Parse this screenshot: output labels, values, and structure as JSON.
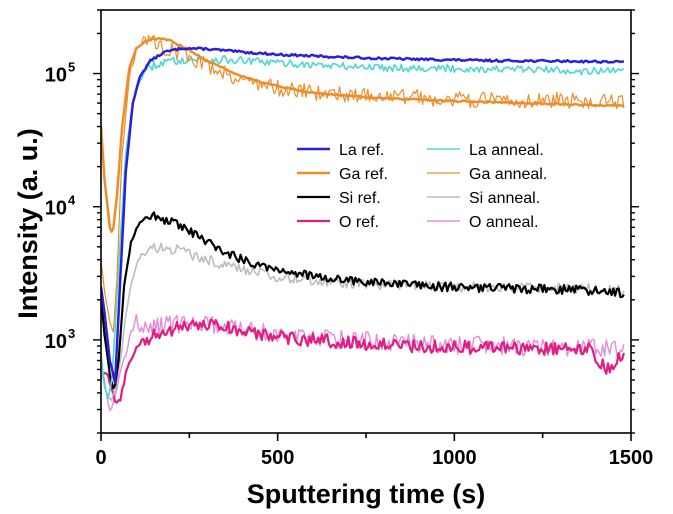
{
  "chart_data": {
    "type": "line",
    "xlabel": "Sputtering time (s)",
    "ylabel": "Intensity (a. u.)",
    "xlim": [
      0,
      1500
    ],
    "ylim": [
      200,
      300000
    ],
    "yscale": "log",
    "x_ticks": [
      {
        "value": 0,
        "label": "0"
      },
      {
        "value": 500,
        "label": "500"
      },
      {
        "value": 1000,
        "label": "1000"
      },
      {
        "value": 1500,
        "label": "1500"
      }
    ],
    "y_ticks": [
      {
        "value": 1000,
        "base": "10",
        "exp": "3"
      },
      {
        "value": 10000,
        "base": "10",
        "exp": "4"
      },
      {
        "value": 100000,
        "base": "10",
        "exp": "5"
      }
    ],
    "grid": false,
    "legend_position": "center-right",
    "series": [
      {
        "name": "La ref.",
        "color": "#2b20d6",
        "width": 2.5,
        "noise": 0.008,
        "points": [
          [
            0,
            2500
          ],
          [
            10,
            1600
          ],
          [
            25,
            700
          ],
          [
            40,
            480
          ],
          [
            55,
            3000
          ],
          [
            70,
            18000
          ],
          [
            90,
            60000
          ],
          [
            110,
            95000
          ],
          [
            140,
            125000
          ],
          [
            180,
            145000
          ],
          [
            230,
            155000
          ],
          [
            300,
            153000
          ],
          [
            400,
            145000
          ],
          [
            500,
            139000
          ],
          [
            700,
            132000
          ],
          [
            900,
            128000
          ],
          [
            1100,
            125000
          ],
          [
            1300,
            124000
          ],
          [
            1400,
            123000
          ],
          [
            1480,
            122000
          ]
        ]
      },
      {
        "name": "La anneal.",
        "color": "#4fd7d2",
        "width": 1.6,
        "noise": 0.03,
        "points": [
          [
            0,
            800
          ],
          [
            10,
            450
          ],
          [
            20,
            360
          ],
          [
            30,
            480
          ],
          [
            40,
            1200
          ],
          [
            55,
            6000
          ],
          [
            70,
            25000
          ],
          [
            90,
            60000
          ],
          [
            110,
            90000
          ],
          [
            140,
            112000
          ],
          [
            180,
            122000
          ],
          [
            250,
            128000
          ],
          [
            350,
            127000
          ],
          [
            500,
            120000
          ],
          [
            700,
            113000
          ],
          [
            900,
            110000
          ],
          [
            1100,
            108000
          ],
          [
            1300,
            106000
          ],
          [
            1480,
            103000
          ]
        ]
      },
      {
        "name": "Ga ref.",
        "color": "#ee8c2a",
        "width": 2.5,
        "noise": 0.006,
        "points": [
          [
            0,
            40000
          ],
          [
            10,
            16000
          ],
          [
            25,
            7000
          ],
          [
            33,
            6200
          ],
          [
            45,
            12000
          ],
          [
            60,
            40000
          ],
          [
            80,
            110000
          ],
          [
            100,
            155000
          ],
          [
            130,
            178000
          ],
          [
            170,
            183000
          ],
          [
            200,
            175000
          ],
          [
            250,
            150000
          ],
          [
            300,
            125000
          ],
          [
            400,
            95000
          ],
          [
            500,
            80000
          ],
          [
            600,
            72000
          ],
          [
            700,
            68000
          ],
          [
            800,
            65000
          ],
          [
            900,
            64000
          ],
          [
            1000,
            62000
          ],
          [
            1100,
            61000
          ],
          [
            1200,
            60000
          ],
          [
            1300,
            59000
          ],
          [
            1400,
            58000
          ],
          [
            1480,
            57000
          ]
        ]
      },
      {
        "name": "Ga anneal.",
        "color": "#ee8c2a",
        "width": 1.2,
        "noise": 0.06,
        "points": [
          [
            0,
            4000
          ],
          [
            10,
            2200
          ],
          [
            25,
            1300
          ],
          [
            35,
            1200
          ],
          [
            45,
            3000
          ],
          [
            60,
            25000
          ],
          [
            80,
            95000
          ],
          [
            100,
            150000
          ],
          [
            120,
            185000
          ],
          [
            150,
            170000
          ],
          [
            200,
            150000
          ],
          [
            260,
            130000
          ],
          [
            320,
            110000
          ],
          [
            400,
            90000
          ],
          [
            500,
            78000
          ],
          [
            600,
            72000
          ],
          [
            700,
            70000
          ],
          [
            800,
            68000
          ],
          [
            900,
            66000
          ],
          [
            1000,
            64000
          ],
          [
            1100,
            63000
          ],
          [
            1200,
            63000
          ],
          [
            1300,
            63000
          ],
          [
            1400,
            62000
          ],
          [
            1480,
            60000
          ]
        ]
      },
      {
        "name": "Si ref.",
        "color": "#000000",
        "width": 2.2,
        "noise": 0.035,
        "points": [
          [
            0,
            2000
          ],
          [
            10,
            1100
          ],
          [
            25,
            550
          ],
          [
            38,
            420
          ],
          [
            50,
            700
          ],
          [
            65,
            2500
          ],
          [
            85,
            5500
          ],
          [
            110,
            7800
          ],
          [
            130,
            8600
          ],
          [
            160,
            8300
          ],
          [
            200,
            7600
          ],
          [
            260,
            6300
          ],
          [
            320,
            5000
          ],
          [
            400,
            4000
          ],
          [
            500,
            3400
          ],
          [
            600,
            3000
          ],
          [
            700,
            2800
          ],
          [
            800,
            2650
          ],
          [
            900,
            2550
          ],
          [
            1000,
            2500
          ],
          [
            1100,
            2450
          ],
          [
            1200,
            2400
          ],
          [
            1300,
            2400
          ],
          [
            1400,
            2350
          ],
          [
            1480,
            2250
          ]
        ]
      },
      {
        "name": "Si anneal.",
        "color": "#bdbdbd",
        "width": 1.6,
        "noise": 0.04,
        "points": [
          [
            0,
            600
          ],
          [
            10,
            450
          ],
          [
            25,
            350
          ],
          [
            40,
            400
          ],
          [
            55,
            700
          ],
          [
            70,
            1500
          ],
          [
            90,
            3000
          ],
          [
            110,
            4200
          ],
          [
            140,
            4800
          ],
          [
            180,
            5000
          ],
          [
            230,
            4600
          ],
          [
            300,
            4000
          ],
          [
            400,
            3400
          ],
          [
            500,
            3000
          ],
          [
            600,
            2800
          ],
          [
            700,
            2700
          ],
          [
            800,
            2600
          ],
          [
            900,
            2550
          ],
          [
            1000,
            2500
          ],
          [
            1100,
            2480
          ],
          [
            1200,
            2450
          ],
          [
            1300,
            2450
          ],
          [
            1400,
            2400
          ],
          [
            1480,
            2350
          ]
        ]
      },
      {
        "name": "O ref.",
        "color": "#e01e82",
        "width": 2.2,
        "noise": 0.05,
        "points": [
          [
            0,
            550
          ],
          [
            10,
            580
          ],
          [
            20,
            520
          ],
          [
            35,
            380
          ],
          [
            45,
            330
          ],
          [
            55,
            360
          ],
          [
            70,
            550
          ],
          [
            90,
            780
          ],
          [
            110,
            950
          ],
          [
            140,
            1050
          ],
          [
            180,
            1150
          ],
          [
            230,
            1250
          ],
          [
            300,
            1300
          ],
          [
            350,
            1250
          ],
          [
            400,
            1150
          ],
          [
            500,
            1050
          ],
          [
            600,
            1000
          ],
          [
            700,
            960
          ],
          [
            800,
            920
          ],
          [
            900,
            900
          ],
          [
            1000,
            880
          ],
          [
            1100,
            870
          ],
          [
            1200,
            860
          ],
          [
            1300,
            850
          ],
          [
            1380,
            850
          ],
          [
            1400,
            700
          ],
          [
            1430,
            620
          ],
          [
            1450,
            650
          ],
          [
            1480,
            780
          ]
        ]
      },
      {
        "name": "O anneal.",
        "color": "#e48cdb",
        "width": 1.4,
        "noise": 0.07,
        "points": [
          [
            0,
            700
          ],
          [
            10,
            500
          ],
          [
            20,
            330
          ],
          [
            30,
            300
          ],
          [
            45,
            430
          ],
          [
            60,
            650
          ],
          [
            75,
            900
          ],
          [
            90,
            1250
          ],
          [
            100,
            1500
          ],
          [
            110,
            1200
          ],
          [
            130,
            1150
          ],
          [
            160,
            1250
          ],
          [
            200,
            1300
          ],
          [
            250,
            1350
          ],
          [
            300,
            1300
          ],
          [
            400,
            1200
          ],
          [
            500,
            1100
          ],
          [
            600,
            1050
          ],
          [
            700,
            1000
          ],
          [
            800,
            970
          ],
          [
            900,
            950
          ],
          [
            1000,
            920
          ],
          [
            1100,
            900
          ],
          [
            1200,
            890
          ],
          [
            1300,
            880
          ],
          [
            1400,
            880
          ],
          [
            1480,
            860
          ]
        ]
      }
    ]
  }
}
